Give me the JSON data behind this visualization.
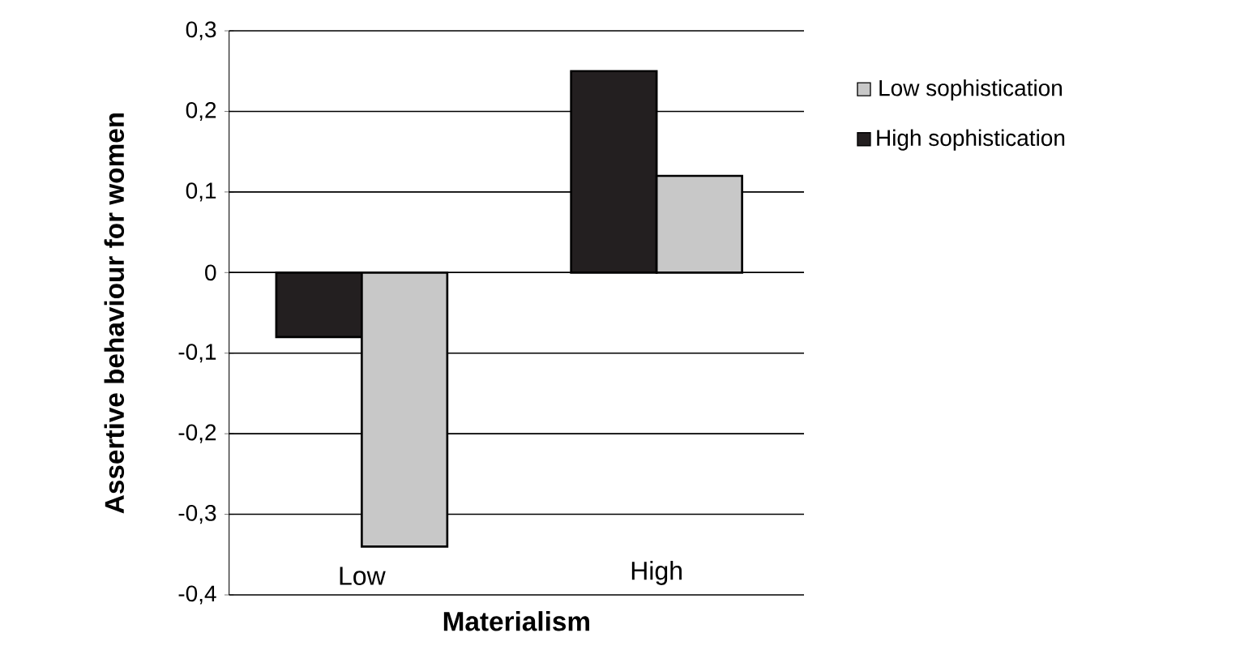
{
  "chart_data": {
    "type": "bar",
    "xlabel": "Materialism",
    "ylabel": "Assertive behaviour for women",
    "categories": [
      "Low",
      "High"
    ],
    "series": [
      {
        "name": "High sophistication",
        "color": "#231f20",
        "values": [
          -0.08,
          0.25
        ]
      },
      {
        "name": "Low sophistication",
        "color": "#c8c8c8",
        "values": [
          -0.34,
          0.12
        ]
      }
    ],
    "ylim": [
      -0.4,
      0.3
    ],
    "yticks": [
      {
        "value": -0.4,
        "label": "-0,4"
      },
      {
        "value": -0.3,
        "label": "-0,3"
      },
      {
        "value": -0.2,
        "label": "-0,2"
      },
      {
        "value": -0.1,
        "label": "-0,1"
      },
      0,
      {
        "value": 0.1,
        "label": "0,1"
      },
      {
        "value": 0.2,
        "label": "0,2"
      },
      {
        "value": 0.3,
        "label": "0,3"
      }
    ],
    "grid": "y",
    "legend": "right"
  }
}
